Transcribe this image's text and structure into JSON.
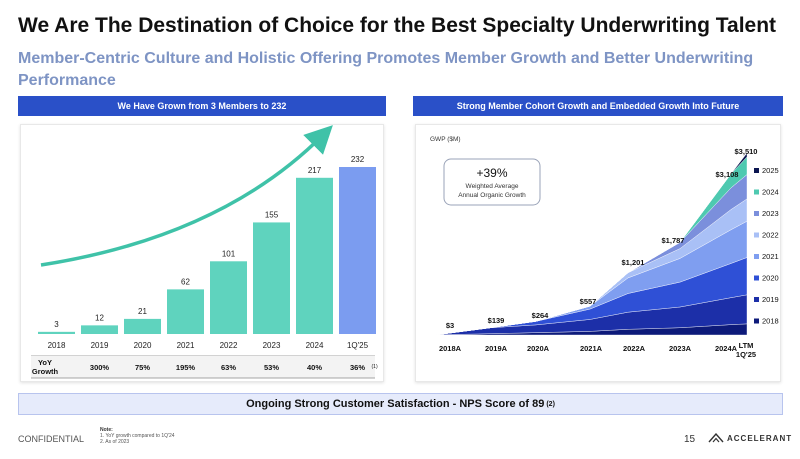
{
  "title": "We Are The Destination of Choice for the Best Specialty Underwriting Talent",
  "subtitle": "Member-Centric Culture and Holistic Offering Promotes Member Growth and Better Underwriting Performance",
  "left_panel": {
    "header": "We Have Grown from 3 Members to 232"
  },
  "right_panel": {
    "header": "Strong Member Cohort Growth and Embedded Growth Into Future",
    "callout_value": "+39%",
    "callout_line1": "Weighted Average",
    "callout_line2": "Annual Organic Growth"
  },
  "nps": {
    "text": "Ongoing Strong Customer Satisfaction - NPS Score of 89",
    "note_ref": "(2)"
  },
  "footer": {
    "confidential": "CONFIDENTIAL",
    "page": "15",
    "logo_text": "ACCELERANT",
    "notes_title": "Note:",
    "notes": [
      "1.  YoY growth compared to 1Q'24",
      "2.  As of 2023"
    ]
  },
  "chart_data": [
    {
      "type": "bar",
      "categories": [
        "2018",
        "2019",
        "2020",
        "2021",
        "2022",
        "2023",
        "2024",
        "1Q'25"
      ],
      "values": [
        3,
        12,
        21,
        62,
        101,
        155,
        217,
        232
      ],
      "value_labels": [
        "3",
        "12",
        "21",
        "62",
        "101",
        "155",
        "217",
        "232"
      ],
      "ylim": [
        0,
        232
      ],
      "colors": {
        "bar": "#5fd3be",
        "highlight": "#7b9cf0",
        "arrow": "#3fc2a8"
      },
      "growth_row": {
        "label_line1": "YoY",
        "label_line2": "Growth",
        "values": [
          "300%",
          "75%",
          "195%",
          "63%",
          "53%",
          "40%",
          "36%"
        ],
        "last_note": "(1)"
      }
    },
    {
      "type": "area",
      "ylabel": "GWP ($M)",
      "categories": [
        "2018A",
        "2019A",
        "2020A",
        "2021A",
        "2022A",
        "2023A",
        "2024A",
        "LTM 1Q'25"
      ],
      "totals": [
        3,
        139,
        264,
        557,
        1201,
        1787,
        3108,
        3510
      ],
      "total_labels": [
        "$3",
        "$139",
        "$264",
        "$557",
        "$1,201",
        "$1,787",
        "$3,108",
        "$3,510"
      ],
      "ylim": [
        0,
        3510
      ],
      "series": [
        {
          "name": "2018",
          "color": "#0d1a7a",
          "values": [
            3,
            25,
            45,
            70,
            110,
            140,
            200,
            215
          ]
        },
        {
          "name": "2019",
          "color": "#1c2fa8",
          "values": [
            0,
            114,
            150,
            230,
            330,
            400,
            520,
            560
          ]
        },
        {
          "name": "2020",
          "color": "#2f50d6",
          "values": [
            0,
            0,
            69,
            200,
            360,
            480,
            660,
            720
          ]
        },
        {
          "name": "2021",
          "color": "#7f9ef0",
          "values": [
            0,
            0,
            0,
            57,
            301,
            457,
            650,
            700
          ]
        },
        {
          "name": "2022",
          "color": "#a9c0f6",
          "values": [
            0,
            0,
            0,
            0,
            100,
            190,
            390,
            430
          ]
        },
        {
          "name": "2023",
          "color": "#7b8fdc",
          "values": [
            0,
            0,
            0,
            0,
            0,
            120,
            418,
            470
          ]
        },
        {
          "name": "2024",
          "color": "#4ec9b0",
          "values": [
            0,
            0,
            0,
            0,
            0,
            0,
            270,
            340
          ]
        },
        {
          "name": "2025",
          "color": "#0b1550",
          "values": [
            0,
            0,
            0,
            0,
            0,
            0,
            0,
            75
          ]
        }
      ]
    }
  ]
}
